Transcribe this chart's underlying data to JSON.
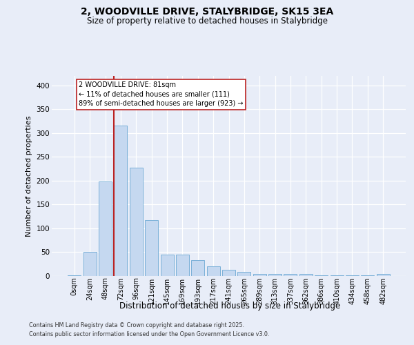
{
  "title1": "2, WOODVILLE DRIVE, STALYBRIDGE, SK15 3EA",
  "title2": "Size of property relative to detached houses in Stalybridge",
  "xlabel": "Distribution of detached houses by size in Stalybridge",
  "ylabel": "Number of detached properties",
  "bar_labels": [
    "0sqm",
    "24sqm",
    "48sqm",
    "72sqm",
    "96sqm",
    "121sqm",
    "145sqm",
    "169sqm",
    "193sqm",
    "217sqm",
    "241sqm",
    "265sqm",
    "289sqm",
    "313sqm",
    "337sqm",
    "362sqm",
    "386sqm",
    "410sqm",
    "434sqm",
    "458sqm",
    "482sqm"
  ],
  "bar_values": [
    2,
    51,
    199,
    316,
    228,
    117,
    45,
    45,
    33,
    21,
    13,
    8,
    5,
    5,
    4,
    5,
    2,
    2,
    2,
    1,
    5
  ],
  "bar_color": "#c5d8f0",
  "bar_edge_color": "#7ab0d8",
  "vline_color": "#bb2222",
  "annotation_text": "2 WOODVILLE DRIVE: 81sqm\n← 11% of detached houses are smaller (111)\n89% of semi-detached houses are larger (923) →",
  "ylim_max": 420,
  "yticks": [
    0,
    50,
    100,
    150,
    200,
    250,
    300,
    350,
    400
  ],
  "footer1": "Contains HM Land Registry data © Crown copyright and database right 2025.",
  "footer2": "Contains public sector information licensed under the Open Government Licence v3.0.",
  "bg_color": "#e8edf8",
  "grid_color": "#ffffff",
  "title1_fontsize": 10,
  "title2_fontsize": 8.5,
  "xlabel_fontsize": 8.5,
  "ylabel_fontsize": 8,
  "tick_fontsize": 7,
  "footer_fontsize": 5.8
}
